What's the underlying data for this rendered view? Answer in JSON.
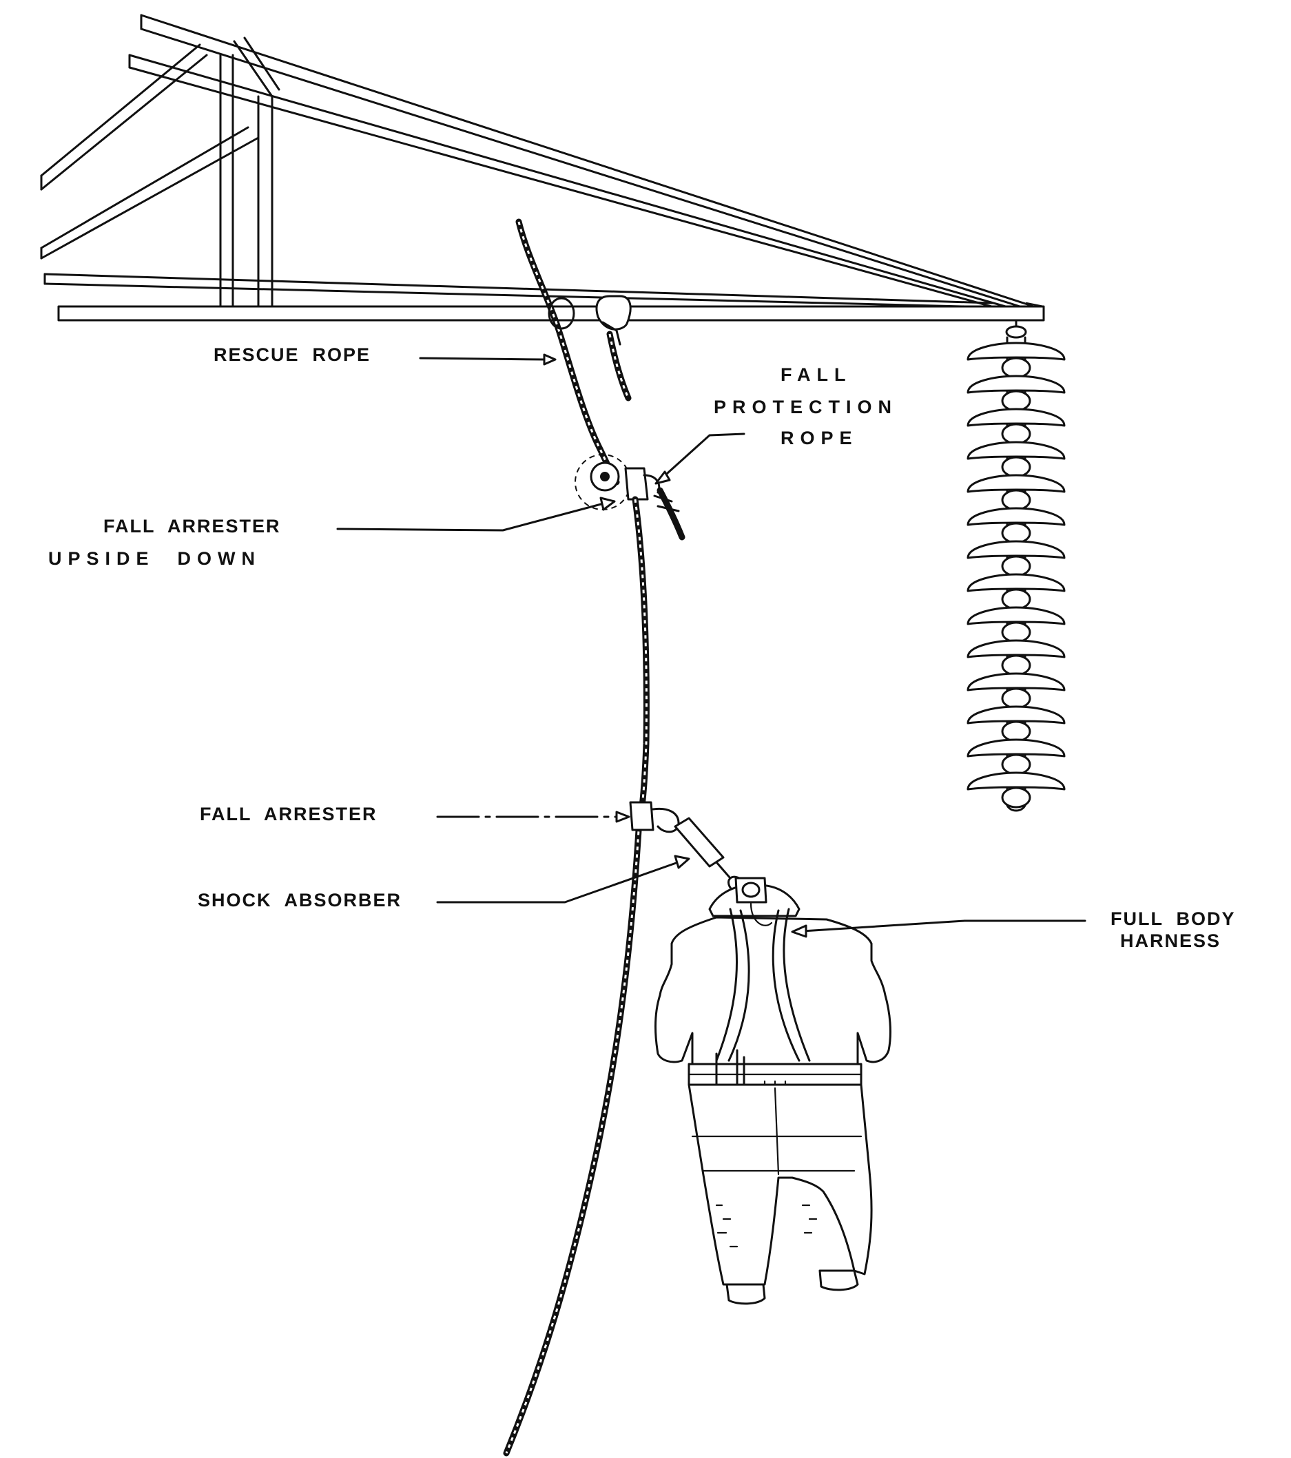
{
  "labels": {
    "rescue_rope": "RESCUE  ROPE",
    "fall_protection_rope": [
      "FALL",
      "PROTECTION",
      "ROPE"
    ],
    "fall_arrester_upside_down": [
      "FALL  ARRESTER",
      "UPSIDE  DOWN"
    ],
    "fall_arrester": "FALL  ARRESTER",
    "shock_absorber": "SHOCK  ABSORBER",
    "full_body_harness": [
      "FULL  BODY",
      "HARNESS"
    ]
  },
  "colors": {
    "ink": "#111111",
    "paper": "#ffffff"
  }
}
